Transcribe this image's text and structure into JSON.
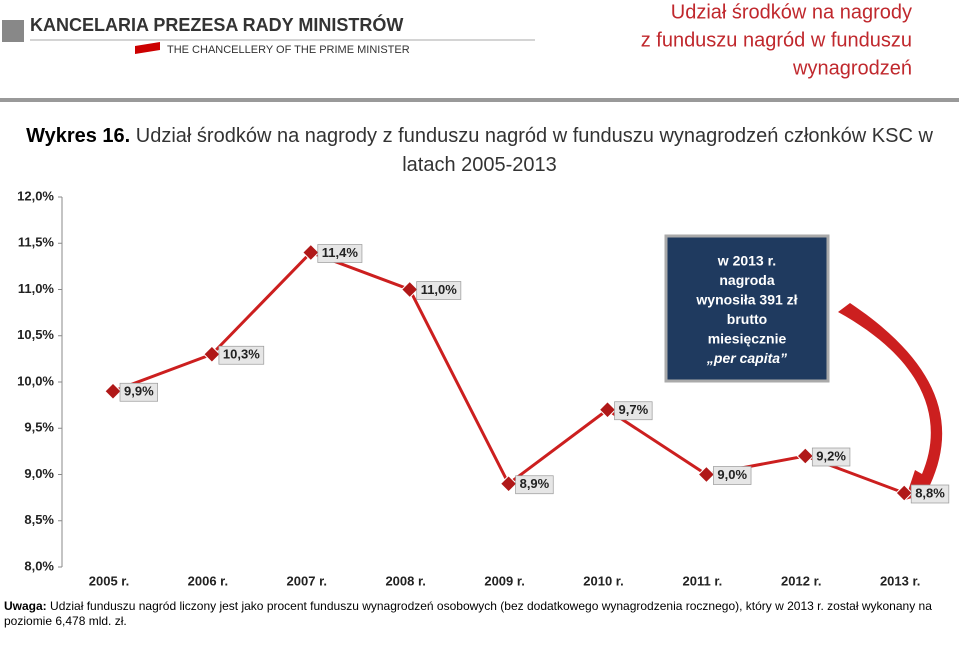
{
  "header": {
    "logo_pl": "KANCELARIA PREZESA RADY MINISTRÓW",
    "logo_en": "THE CHANCELLERY OF THE PRIME MINISTER",
    "title_lines": [
      "Udział środków na nagrody",
      "z funduszu nagród w funduszu",
      "wynagrodzeń"
    ]
  },
  "chart_data": {
    "type": "line",
    "title_label": "Wykres 16.",
    "title": "Udział środków na nagrody z funduszu nagród w funduszu wynagrodzeń członków KSC w latach 2005-2013",
    "categories": [
      "2005 r.",
      "2006 r.",
      "2007 r.",
      "2008 r.",
      "2009 r.",
      "2010 r.",
      "2011 r.",
      "2012 r.",
      "2013 r."
    ],
    "values": [
      9.9,
      10.3,
      11.4,
      11.0,
      8.9,
      9.7,
      9.0,
      9.2,
      8.8
    ],
    "value_labels": [
      "9,9%",
      "10,3%",
      "11,4%",
      "11,0%",
      "8,9%",
      "9,7%",
      "9,0%",
      "9,2%",
      "8,8%"
    ],
    "color": "#cc1f1f",
    "ylim": [
      8,
      12
    ],
    "yticks": [
      {
        "value": 8,
        "label": "8,0%"
      },
      {
        "value": 8.5,
        "label": "8,5%"
      },
      {
        "value": 9,
        "label": "9,0%"
      },
      {
        "value": 9.5,
        "label": "9,5%"
      },
      {
        "value": 10,
        "label": "10,0%"
      },
      {
        "value": 10.5,
        "label": "10,5%"
      },
      {
        "value": 11,
        "label": "11,0%"
      },
      {
        "value": 11.5,
        "label": "11,5%"
      },
      {
        "value": 12,
        "label": "12,0%"
      }
    ],
    "grid": false,
    "annotation_lines": [
      "w 2013 r.",
      "nagroda",
      "wynosiła 391 zł",
      "brutto",
      "miesięcznie",
      "„per capita”"
    ]
  },
  "note": {
    "label": "Uwaga:",
    "text": "Udział funduszu nagród liczony jest jako procent funduszu wynagrodzeń osobowych (bez dodatkowego wynagrodzenia rocznego), który w 2013 r. został wykonany na poziomie 6,478 mld. zł."
  }
}
